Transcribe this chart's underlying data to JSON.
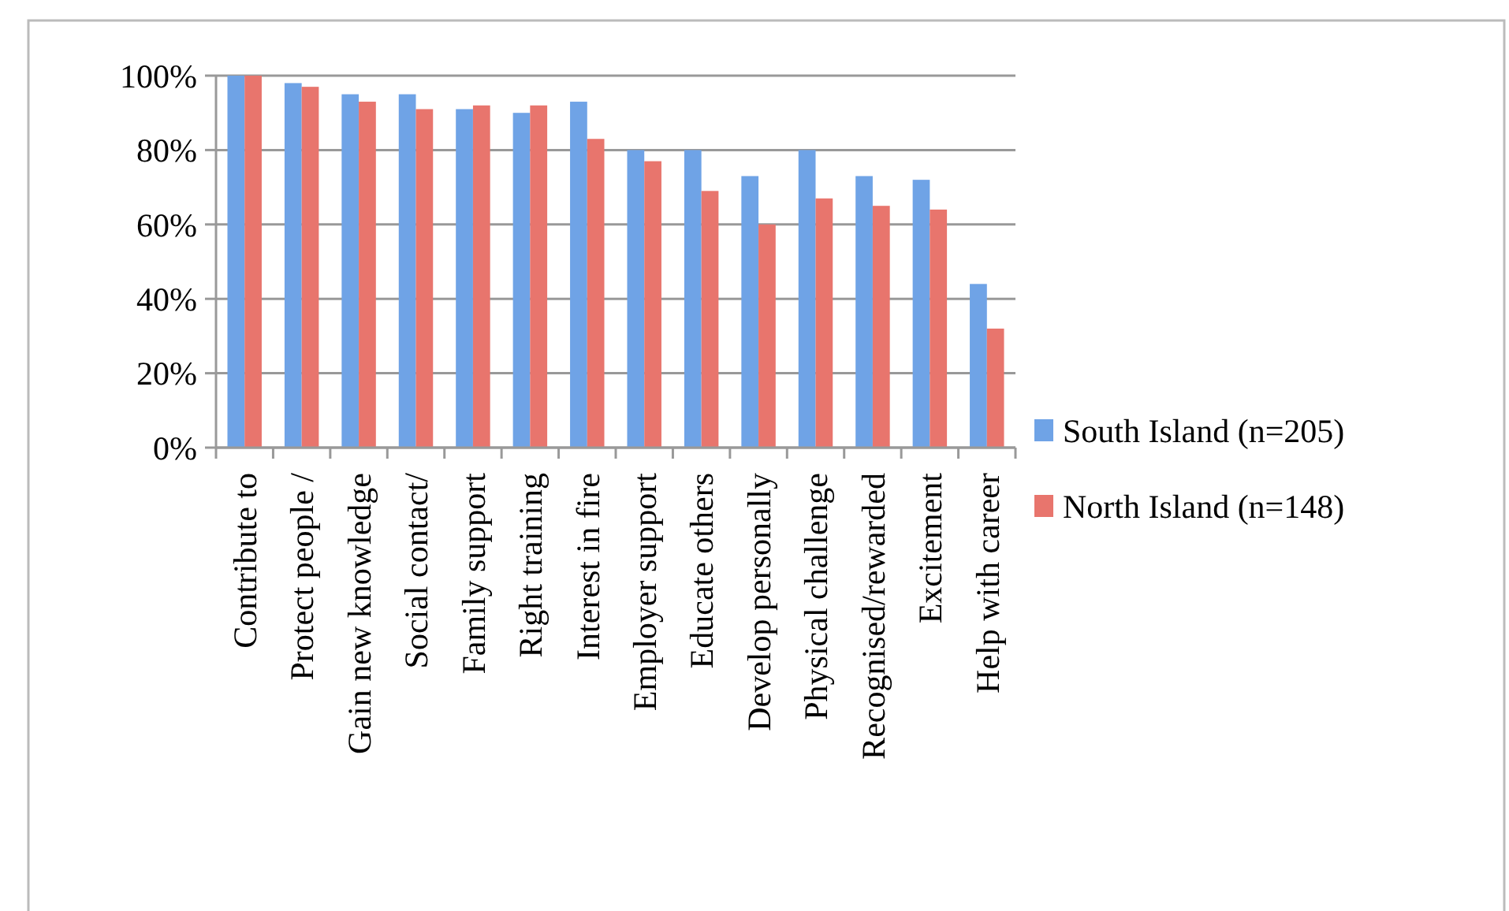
{
  "chart_data": {
    "type": "bar",
    "categories": [
      "Contribute to",
      "Protect people /",
      "Gain new knowledge",
      "Social contact/",
      "Family support",
      "Right training",
      "Interest in fire",
      "Employer support",
      "Educate others",
      "Develop personally",
      "Physical challenge",
      "Recognised/rewarded",
      "Excitement",
      "Help with career"
    ],
    "series": [
      {
        "name": "South Island (n=205)",
        "color": "#6fa3e6",
        "values": [
          100,
          98,
          95,
          95,
          91,
          90,
          93,
          80,
          80,
          73,
          80,
          73,
          72,
          44
        ]
      },
      {
        "name": "North Island (n=148)",
        "color": "#e8756d",
        "values": [
          100,
          97,
          93,
          91,
          92,
          92,
          83,
          77,
          69,
          60,
          67,
          65,
          64,
          32
        ]
      }
    ],
    "ylim": [
      0,
      100
    ],
    "yticks": [
      {
        "value": 0,
        "label": "0%"
      },
      {
        "value": 20,
        "label": "20%"
      },
      {
        "value": 40,
        "label": "40%"
      },
      {
        "value": 60,
        "label": "60%"
      },
      {
        "value": 80,
        "label": "80%"
      },
      {
        "value": 100,
        "label": "100%"
      }
    ],
    "grid": "y",
    "legend": "right"
  }
}
